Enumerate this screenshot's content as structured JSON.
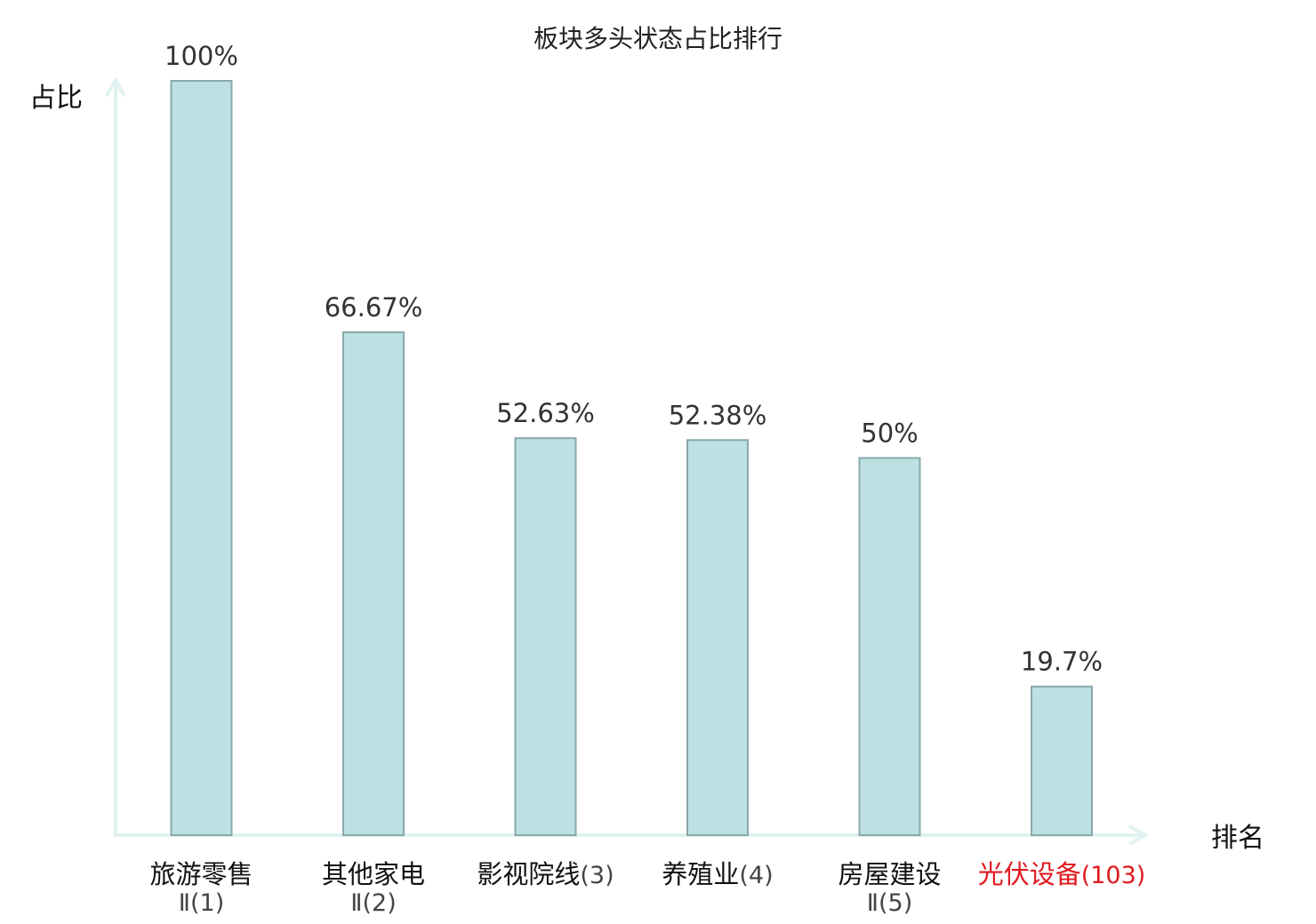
{
  "chart_data": {
    "type": "bar",
    "title": "板块多头状态占比排行",
    "ylabel": "占比",
    "xlabel": "排名",
    "ylim": [
      0,
      100
    ],
    "grid": false,
    "categories": [
      {
        "line1_main": "旅游零售",
        "line1_paren": "",
        "line2": "Ⅱ(1)",
        "highlight": false
      },
      {
        "line1_main": "其他家电",
        "line1_paren": "",
        "line2": "Ⅱ(2)",
        "highlight": false
      },
      {
        "line1_main": "影视院线",
        "line1_paren": "(3)",
        "line2": "",
        "highlight": false
      },
      {
        "line1_main": "养殖业",
        "line1_paren": "(4)",
        "line2": "",
        "highlight": false
      },
      {
        "line1_main": "房屋建设",
        "line1_paren": "",
        "line2": "Ⅱ(5)",
        "highlight": false
      },
      {
        "line1_main": "光伏设备",
        "line1_paren": "(103)",
        "line2": "",
        "highlight": true
      }
    ],
    "values": [
      100,
      66.67,
      52.63,
      52.38,
      50,
      19.7
    ],
    "value_labels": [
      "100%",
      "66.67%",
      "52.63%",
      "52.38%",
      "50%",
      "19.7%"
    ]
  },
  "colors": {
    "bar_fill": "#bde0e3",
    "bar_stroke": "#8aa8ab",
    "axis": "#e0f2ef",
    "highlight": "#e0191e",
    "category_text": "#111111",
    "category_paren": "#444444"
  }
}
